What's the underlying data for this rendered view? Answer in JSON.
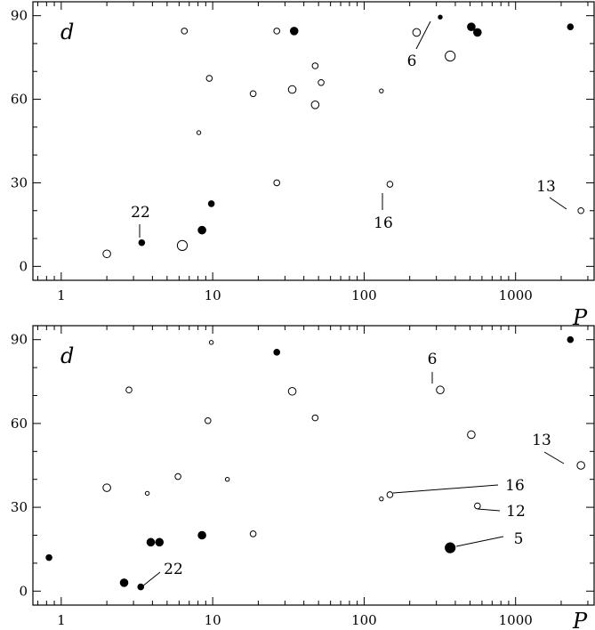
{
  "chart_data": [
    {
      "type": "scatter",
      "xscale": "log",
      "xlim": [
        0.65,
        3300
      ],
      "ylim": [
        -5,
        95
      ],
      "xlabel": "P",
      "ylabel": "d",
      "xtick_values": [
        1,
        10,
        100,
        1000
      ],
      "xtick_labels": [
        "1",
        "10",
        "100",
        "1000"
      ],
      "ytick_values": [
        0,
        30,
        60,
        90
      ],
      "ytick_labels": [
        "0",
        "30",
        "60",
        "90"
      ],
      "points": [
        {
          "x": 2.0,
          "y": 4.5,
          "filled": false,
          "size": "medium"
        },
        {
          "x": 6.3,
          "y": 7.5,
          "filled": false,
          "size": "large"
        },
        {
          "x": 3.4,
          "y": 8.5,
          "filled": true,
          "size": "small"
        },
        {
          "x": 8.5,
          "y": 13,
          "filled": true,
          "size": "medium"
        },
        {
          "x": 9.8,
          "y": 22.5,
          "filled": true,
          "size": "small"
        },
        {
          "x": 8.1,
          "y": 48,
          "filled": false,
          "size": "tiny"
        },
        {
          "x": 9.5,
          "y": 67.5,
          "filled": false,
          "size": "small"
        },
        {
          "x": 6.5,
          "y": 84.5,
          "filled": false,
          "size": "small"
        },
        {
          "x": 18.5,
          "y": 62,
          "filled": false,
          "size": "small"
        },
        {
          "x": 26.5,
          "y": 84.5,
          "filled": false,
          "size": "small"
        },
        {
          "x": 26.5,
          "y": 30,
          "filled": false,
          "size": "small"
        },
        {
          "x": 33.5,
          "y": 63.5,
          "filled": false,
          "size": "medium"
        },
        {
          "x": 34.5,
          "y": 84.5,
          "filled": true,
          "size": "medium"
        },
        {
          "x": 47.5,
          "y": 72,
          "filled": false,
          "size": "small"
        },
        {
          "x": 47.5,
          "y": 58,
          "filled": false,
          "size": "medium"
        },
        {
          "x": 52,
          "y": 66,
          "filled": false,
          "size": "small"
        },
        {
          "x": 130,
          "y": 63,
          "filled": false,
          "size": "tiny"
        },
        {
          "x": 148,
          "y": 29.5,
          "filled": false,
          "size": "small"
        },
        {
          "x": 222,
          "y": 84,
          "filled": false,
          "size": "medium"
        },
        {
          "x": 318,
          "y": 89.5,
          "filled": true,
          "size": "tiny"
        },
        {
          "x": 370,
          "y": 75.5,
          "filled": false,
          "size": "large"
        },
        {
          "x": 510,
          "y": 86,
          "filled": true,
          "size": "medium"
        },
        {
          "x": 560,
          "y": 84,
          "filled": true,
          "size": "medium"
        },
        {
          "x": 2300,
          "y": 86,
          "filled": true,
          "size": "small"
        },
        {
          "x": 2700,
          "y": 20,
          "filled": false,
          "size": "small"
        }
      ],
      "annotations": [
        {
          "text": "22",
          "x": 3.4,
          "y": 8.5
        },
        {
          "text": "6",
          "x": 318,
          "y": 89.5
        },
        {
          "text": "16",
          "x": 148,
          "y": 29.5
        },
        {
          "text": "13",
          "x": 2700,
          "y": 20
        }
      ]
    },
    {
      "type": "scatter",
      "xscale": "log",
      "xlim": [
        0.65,
        3300
      ],
      "ylim": [
        -5,
        95
      ],
      "xlabel": "P",
      "ylabel": "d",
      "xtick_values": [
        1,
        10,
        100,
        1000
      ],
      "xtick_labels": [
        "1",
        "10",
        "100",
        "1000"
      ],
      "ytick_values": [
        0,
        30,
        60,
        90
      ],
      "ytick_labels": [
        "0",
        "30",
        "60",
        "90"
      ],
      "points": [
        {
          "x": 0.83,
          "y": 12,
          "filled": true,
          "size": "small"
        },
        {
          "x": 2.0,
          "y": 37,
          "filled": false,
          "size": "medium"
        },
        {
          "x": 2.6,
          "y": 3,
          "filled": true,
          "size": "medium"
        },
        {
          "x": 2.8,
          "y": 72,
          "filled": false,
          "size": "small"
        },
        {
          "x": 3.35,
          "y": 1.5,
          "filled": true,
          "size": "small"
        },
        {
          "x": 3.7,
          "y": 35,
          "filled": false,
          "size": "tiny"
        },
        {
          "x": 3.9,
          "y": 17.5,
          "filled": true,
          "size": "medium"
        },
        {
          "x": 4.45,
          "y": 17.5,
          "filled": true,
          "size": "medium"
        },
        {
          "x": 5.9,
          "y": 41,
          "filled": false,
          "size": "small"
        },
        {
          "x": 8.5,
          "y": 20,
          "filled": true,
          "size": "medium"
        },
        {
          "x": 9.3,
          "y": 61,
          "filled": false,
          "size": "small"
        },
        {
          "x": 9.8,
          "y": 89,
          "filled": false,
          "size": "tiny"
        },
        {
          "x": 12.5,
          "y": 40,
          "filled": false,
          "size": "tiny"
        },
        {
          "x": 18.5,
          "y": 20.5,
          "filled": false,
          "size": "small"
        },
        {
          "x": 26.5,
          "y": 85.5,
          "filled": true,
          "size": "small"
        },
        {
          "x": 33.5,
          "y": 71.5,
          "filled": false,
          "size": "medium"
        },
        {
          "x": 47.5,
          "y": 62,
          "filled": false,
          "size": "small"
        },
        {
          "x": 130,
          "y": 33,
          "filled": false,
          "size": "tiny"
        },
        {
          "x": 148,
          "y": 34.5,
          "filled": false,
          "size": "small"
        },
        {
          "x": 318,
          "y": 72,
          "filled": false,
          "size": "medium"
        },
        {
          "x": 370,
          "y": 15.5,
          "filled": true,
          "size": "large"
        },
        {
          "x": 510,
          "y": 56,
          "filled": false,
          "size": "medium"
        },
        {
          "x": 560,
          "y": 30.5,
          "filled": false,
          "size": "small"
        },
        {
          "x": 2300,
          "y": 90,
          "filled": true,
          "size": "small"
        },
        {
          "x": 2700,
          "y": 45,
          "filled": false,
          "size": "medium"
        }
      ],
      "annotations": [
        {
          "text": "6",
          "x": 318,
          "y": 72
        },
        {
          "text": "13",
          "x": 2700,
          "y": 45
        },
        {
          "text": "16",
          "x": 148,
          "y": 34.5
        },
        {
          "text": "12",
          "x": 560,
          "y": 30.5
        },
        {
          "text": "5",
          "x": 370,
          "y": 15.5
        },
        {
          "text": "22",
          "x": 3.35,
          "y": 1.5
        }
      ]
    }
  ]
}
